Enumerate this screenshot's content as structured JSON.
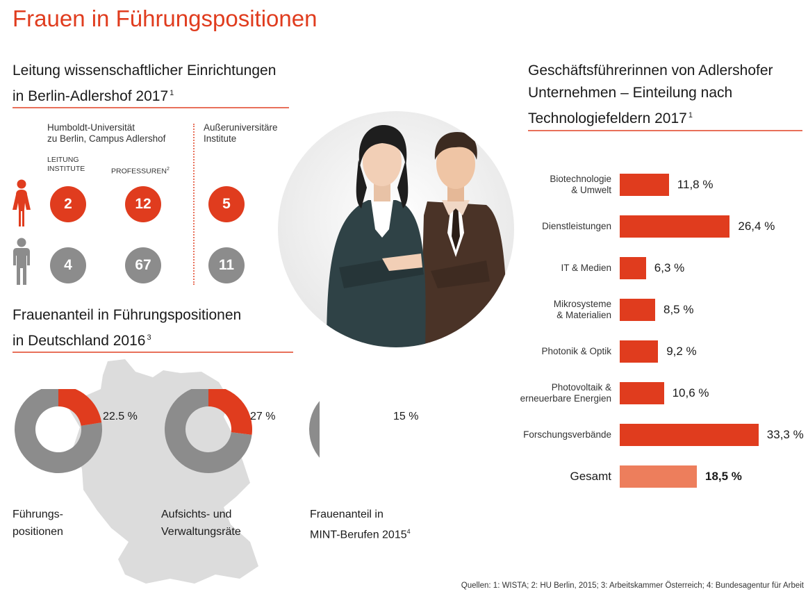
{
  "title": "Frauen in Führungspositionen",
  "adlershof": {
    "title_line1": "Leitung wissenschaftlicher Einrichtungen",
    "title_line2": "in Berlin-Adlershof 2017",
    "title_footnote": "1",
    "hu_line1": "Humboldt-Universität",
    "hu_line2": "zu Berlin, Campus Adlershof",
    "aui_line1": "Außeruniversitäre",
    "aui_line2": "Institute",
    "col1_line1": "LEITUNG",
    "col1_line2": "INSTITUTE",
    "col2": "PROFESSUREN",
    "col2_footnote": "2",
    "women": [
      "2",
      "12",
      "5"
    ],
    "men": [
      "4",
      "67",
      "11"
    ],
    "colors": {
      "women": "#e03c1e",
      "men": "#8c8c8c"
    }
  },
  "germany": {
    "title_line1": "Frauenanteil in Führungspositionen",
    "title_line2": "in Deutschland 2016",
    "title_footnote": "3",
    "donuts": [
      {
        "value_label": "22.5 %",
        "value": 22.5,
        "cap1": "Führungs-",
        "cap2": "positionen",
        "footnote": ""
      },
      {
        "value_label": "27 %",
        "value": 27,
        "cap1": "Aufsichts- und",
        "cap2": "Verwaltungsräte",
        "footnote": ""
      },
      {
        "value_label": "15 %",
        "value": 15,
        "cap1": "Frauenanteil in",
        "cap2": "MINT-Berufen 2015",
        "footnote": "4"
      }
    ]
  },
  "companies": {
    "title_line1": "Geschäftsführerinnen von Adlershofer",
    "title_line2": "Unternehmen – Einteilung nach",
    "title_line3": "Technologiefeldern 2017",
    "title_footnote": "1"
  },
  "chart_data": {
    "type": "bar",
    "orientation": "horizontal",
    "categories": [
      [
        "Biotechnologie",
        "& Umwelt"
      ],
      [
        "Dienstleistungen"
      ],
      [
        "IT & Medien"
      ],
      [
        "Mikrosysteme",
        "& Materialien"
      ],
      [
        "Photonik & Optik"
      ],
      [
        "Photovoltaik &",
        "erneuerbare Energien"
      ],
      [
        "Forschungsverbände"
      ]
    ],
    "values": [
      11.8,
      26.4,
      6.3,
      8.5,
      9.2,
      10.6,
      33.3
    ],
    "value_labels": [
      "11,8 %",
      "26,4 %",
      "6,3 %",
      "8,5 %",
      "9,2 %",
      "10,6 %",
      "33,3 %"
    ],
    "total": {
      "label": "Gesamt",
      "value": 18.5,
      "value_label": "18,5 %"
    },
    "colors": {
      "bar": "#e03c1e",
      "total": "#ed7e5c"
    }
  },
  "sources": "Quellen: 1: WISTA; 2: HU Berlin, 2015; 3: Arbeitskammer Österreich; 4: Bundesagentur für Arbeit"
}
